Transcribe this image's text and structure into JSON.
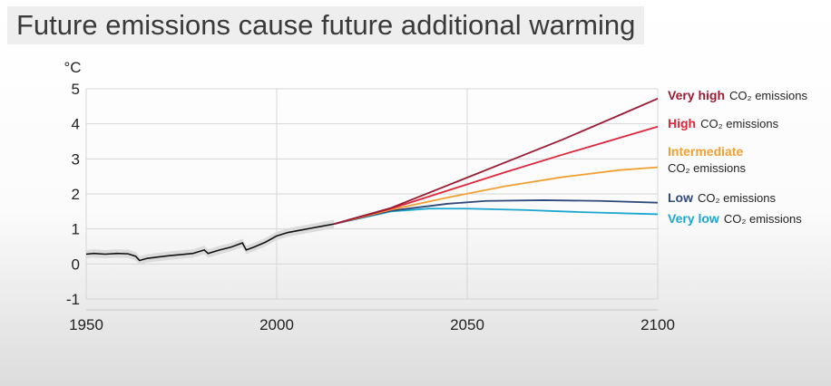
{
  "title": "Future emissions cause future additional warming",
  "chart_data": {
    "type": "line",
    "ylabel": "°C",
    "ylim": [
      -1,
      5
    ],
    "xlim": [
      1950,
      2100
    ],
    "yticks": [
      "5",
      "4",
      "3",
      "2",
      "1",
      "0",
      "-1"
    ],
    "ytick_values": [
      5,
      4,
      3,
      2,
      1,
      0,
      -1
    ],
    "xticks": [
      "1950",
      "2000",
      "2050",
      "2100"
    ],
    "xtick_values": [
      1950,
      2000,
      2050,
      2100
    ],
    "grid": true,
    "historical": {
      "color": "#111111",
      "band_color": "#dcdcdc",
      "x": [
        1950,
        1952,
        1955,
        1958,
        1961,
        1963,
        1964,
        1966,
        1969,
        1972,
        1975,
        1978,
        1981,
        1982,
        1985,
        1988,
        1991,
        1992,
        1994,
        1997,
        2000,
        2003,
        2006,
        2009,
        2012,
        2015
      ],
      "y": [
        0.28,
        0.3,
        0.28,
        0.3,
        0.29,
        0.22,
        0.1,
        0.16,
        0.2,
        0.24,
        0.27,
        0.3,
        0.4,
        0.3,
        0.4,
        0.48,
        0.6,
        0.4,
        0.48,
        0.62,
        0.8,
        0.9,
        0.96,
        1.02,
        1.08,
        1.14
      ]
    },
    "series": [
      {
        "key": "very_high",
        "label_bold": "Very high",
        "label_rest": "CO₂ emissions",
        "color": "#9b1b33",
        "x": [
          2015,
          2030,
          2045,
          2060,
          2075,
          2090,
          2100
        ],
        "y": [
          1.14,
          1.6,
          2.25,
          2.9,
          3.55,
          4.25,
          4.72
        ]
      },
      {
        "key": "high",
        "label_bold": "High",
        "label_rest": "CO₂ emissions",
        "color": "#e0253c",
        "x": [
          2015,
          2030,
          2045,
          2060,
          2075,
          2090,
          2100
        ],
        "y": [
          1.14,
          1.58,
          2.1,
          2.62,
          3.12,
          3.6,
          3.92
        ]
      },
      {
        "key": "intermediate",
        "label_bold": "Intermediate",
        "label_rest": "CO₂ emissions",
        "color": "#f0a032",
        "x": [
          2015,
          2030,
          2045,
          2060,
          2075,
          2090,
          2100
        ],
        "y": [
          1.14,
          1.55,
          1.9,
          2.22,
          2.48,
          2.68,
          2.76
        ]
      },
      {
        "key": "low",
        "label_bold": "Low",
        "label_rest": "CO₂ emissions",
        "color": "#2f4a7a",
        "x": [
          2015,
          2030,
          2045,
          2055,
          2070,
          2085,
          2100
        ],
        "y": [
          1.14,
          1.52,
          1.72,
          1.8,
          1.82,
          1.8,
          1.75
        ]
      },
      {
        "key": "very_low",
        "label_bold": "Very low",
        "label_rest": "CO₂ emissions",
        "color": "#1aa7cf",
        "x": [
          2015,
          2030,
          2040,
          2050,
          2065,
          2080,
          2100
        ],
        "y": [
          1.14,
          1.5,
          1.58,
          1.58,
          1.54,
          1.48,
          1.42
        ]
      }
    ]
  }
}
